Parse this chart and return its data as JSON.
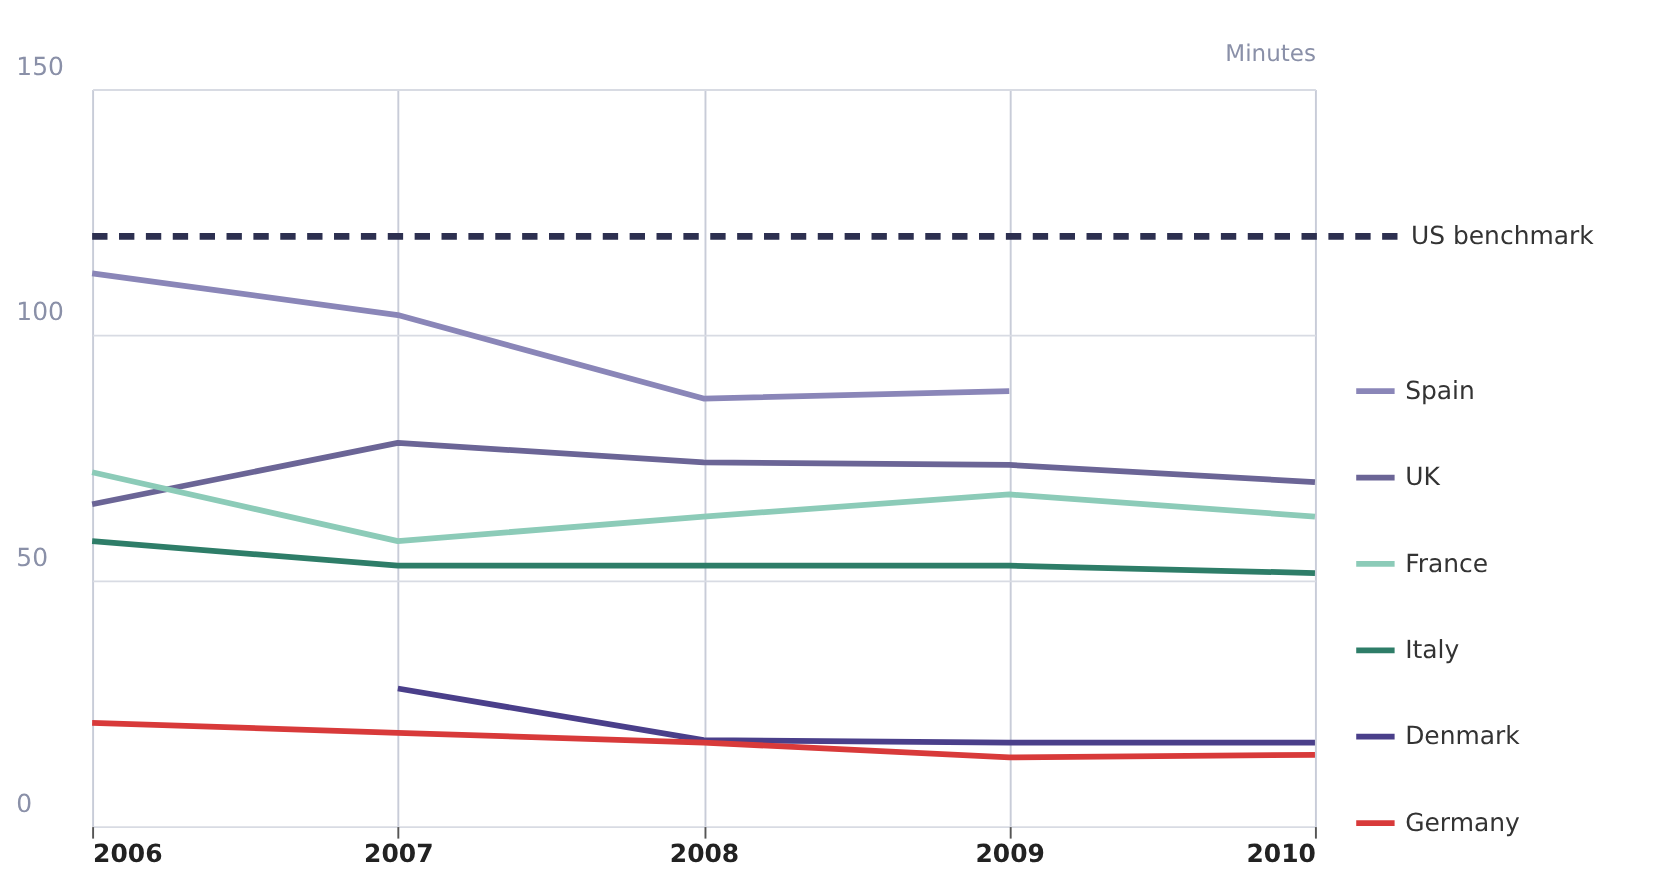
{
  "chart_data": {
    "type": "line",
    "ylabel": "Minutes",
    "x": [
      2006,
      2007,
      2008,
      2009,
      2010
    ],
    "xlim": [
      2006,
      2010
    ],
    "xticks": [
      2006,
      2007,
      2008,
      2009,
      2010
    ],
    "ylim": [
      0,
      150
    ],
    "yticks": [
      0,
      50,
      100,
      150
    ],
    "grid": true,
    "legend": "right",
    "line_style": "solid",
    "series": [
      {
        "name": "Spain",
        "color": "#8a86b8",
        "values": [
          112.5,
          104,
          87,
          88.5,
          null
        ]
      },
      {
        "name": "UK",
        "color": "#6b6596",
        "values": [
          65.5,
          78,
          74,
          73.5,
          70
        ]
      },
      {
        "name": "France",
        "color": "#8ccbb8",
        "values": [
          72,
          58,
          63,
          67.5,
          63
        ]
      },
      {
        "name": "Italy",
        "color": "#2e7d68",
        "values": [
          58,
          53,
          53,
          53,
          51.5
        ]
      },
      {
        "name": "Denmark",
        "color": "#4a3f8a",
        "values": [
          null,
          28,
          17.5,
          17,
          17
        ]
      },
      {
        "name": "Germany",
        "color": "#d83a3a",
        "values": [
          21,
          19,
          17,
          14,
          14.5
        ]
      }
    ],
    "ref_lines": [
      {
        "axis": "y",
        "value": 120,
        "label": "US benchmark",
        "color": "#2d3050",
        "line_style": "dashed"
      }
    ]
  }
}
